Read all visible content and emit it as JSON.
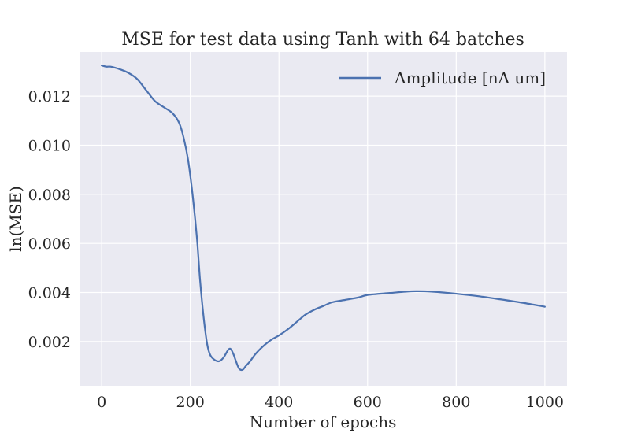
{
  "chart_data": {
    "type": "line",
    "title": "MSE for test data using Tanh with 64 batches",
    "xlabel": "Number of epochs",
    "ylabel": "ln(MSE)",
    "xlim": [
      -50,
      1050
    ],
    "ylim": [
      0.0002,
      0.0138
    ],
    "xticks": [
      0,
      200,
      400,
      600,
      800,
      1000
    ],
    "xtick_labels": [
      "0",
      "200",
      "400",
      "600",
      "800",
      "1000"
    ],
    "yticks": [
      0.002,
      0.004,
      0.006,
      0.008,
      0.01,
      0.012
    ],
    "ytick_labels": [
      "0.002",
      "0.004",
      "0.006",
      "0.008",
      "0.010",
      "0.012"
    ],
    "grid": true,
    "legend_position": "top-right",
    "colors": {
      "background": "#eaeaf2",
      "grid": "#ffffff",
      "series": "#4c72b0"
    },
    "series": [
      {
        "name": "Amplitude [nA um]",
        "x": [
          0,
          10,
          20,
          40,
          60,
          80,
          100,
          120,
          140,
          160,
          175,
          185,
          195,
          205,
          215,
          222,
          230,
          238,
          245,
          255,
          265,
          275,
          285,
          291,
          297,
          303,
          310,
          318,
          325,
          335,
          345,
          355,
          370,
          385,
          400,
          420,
          440,
          460,
          480,
          500,
          520,
          550,
          580,
          600,
          650,
          700,
          750,
          800,
          850,
          900,
          950,
          1000
        ],
        "y": [
          0.01325,
          0.0132,
          0.0132,
          0.0131,
          0.01295,
          0.0127,
          0.01225,
          0.0118,
          0.01155,
          0.0113,
          0.0109,
          0.0103,
          0.0094,
          0.008,
          0.0062,
          0.0045,
          0.003,
          0.0019,
          0.00145,
          0.00125,
          0.0012,
          0.00135,
          0.00165,
          0.0017,
          0.0015,
          0.0012,
          0.0009,
          0.00085,
          0.001,
          0.0012,
          0.00145,
          0.00165,
          0.0019,
          0.0021,
          0.00225,
          0.0025,
          0.0028,
          0.0031,
          0.0033,
          0.00345,
          0.0036,
          0.0037,
          0.0038,
          0.0039,
          0.00398,
          0.00405,
          0.00403,
          0.00395,
          0.00385,
          0.00372,
          0.00358,
          0.00342
        ]
      }
    ]
  }
}
